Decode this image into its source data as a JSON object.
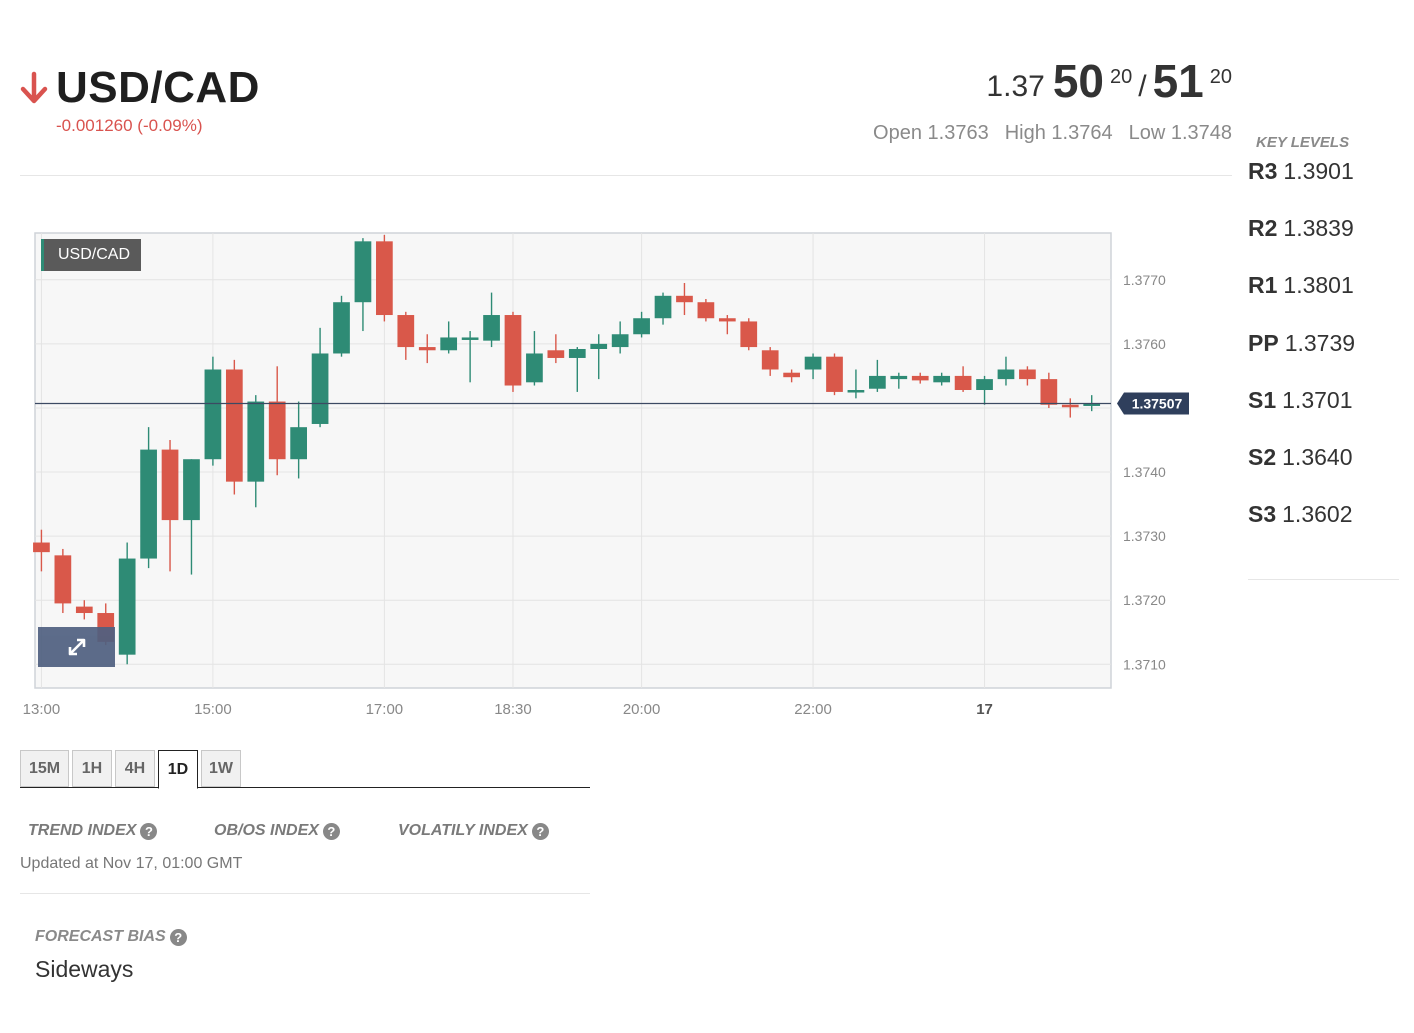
{
  "header": {
    "pair": "USD/CAD",
    "direction_icon": "arrow-down-icon",
    "change": "-0.001260 (-0.09%)",
    "price": {
      "prefix": "1.37",
      "bid_big": "50",
      "bid_pip": "20",
      "separator": "/",
      "ask_big": "51",
      "ask_pip": "20"
    },
    "open": "Open 1.3763",
    "high": "High 1.3764",
    "low": "Low 1.3748"
  },
  "key_levels": {
    "title": "KEY LEVELS",
    "items": [
      {
        "name": "R3",
        "value": "1.3901"
      },
      {
        "name": "R2",
        "value": "1.3839"
      },
      {
        "name": "R1",
        "value": "1.3801"
      },
      {
        "name": "PP",
        "value": "1.3739"
      },
      {
        "name": "S1",
        "value": "1.3701"
      },
      {
        "name": "S2",
        "value": "1.3640"
      },
      {
        "name": "S3",
        "value": "1.3602"
      }
    ]
  },
  "chart_data": {
    "type": "candlestick",
    "badge": "USD/CAD",
    "current_price_label": "1.37507",
    "current_price": 1.37507,
    "ylim": [
      1.37063,
      1.37773
    ],
    "yticks": [
      1.371,
      1.372,
      1.373,
      1.374,
      1.375,
      1.376,
      1.377
    ],
    "ytick_labels": [
      "1.3710",
      "1.3720",
      "1.3730",
      "1.3740",
      "",
      "1.3760",
      "1.3770"
    ],
    "xticks": [
      {
        "label": "13:00",
        "x": 0
      },
      {
        "label": "15:00",
        "x": 8
      },
      {
        "label": "17:00",
        "x": 16
      },
      {
        "label": "18:30",
        "x": 22
      },
      {
        "label": "20:00",
        "x": 28
      },
      {
        "label": "22:00",
        "x": 36
      },
      {
        "label": "17",
        "x": 44,
        "bold": true
      }
    ],
    "x_range": [
      0,
      50
    ],
    "colors": {
      "up": "#2e8b75",
      "down": "#d9584a",
      "grid": "#e4e4e4",
      "plot_bg": "#f7f7f7",
      "price_line": "#3c4a63",
      "price_tag": "#2f3f5c"
    },
    "candles": [
      {
        "x": 0,
        "o": 1.3729,
        "h": 1.3731,
        "l": 1.37245,
        "c": 1.37275
      },
      {
        "x": 1,
        "o": 1.3727,
        "h": 1.3728,
        "l": 1.3718,
        "c": 1.37195
      },
      {
        "x": 2,
        "o": 1.3719,
        "h": 1.372,
        "l": 1.3717,
        "c": 1.3718
      },
      {
        "x": 2,
        "o": 1.3718,
        "h": 1.37205,
        "l": 1.37065,
        "c": 1.37175,
        "shadow": true
      },
      {
        "x": 3,
        "o": 1.3718,
        "h": 1.37195,
        "l": 1.3713,
        "c": 1.37135
      },
      {
        "x": 4,
        "o": 1.37115,
        "h": 1.3729,
        "l": 1.371,
        "c": 1.37265
      },
      {
        "x": 5,
        "o": 1.37265,
        "h": 1.3747,
        "l": 1.3725,
        "c": 1.37435
      },
      {
        "x": 6,
        "o": 1.37435,
        "h": 1.3745,
        "l": 1.37245,
        "c": 1.37325
      },
      {
        "x": 7,
        "o": 1.37325,
        "h": 1.3742,
        "l": 1.3724,
        "c": 1.3742
      },
      {
        "x": 8,
        "o": 1.3742,
        "h": 1.3758,
        "l": 1.3741,
        "c": 1.3756
      },
      {
        "x": 9,
        "o": 1.3756,
        "h": 1.37575,
        "l": 1.37365,
        "c": 1.37385
      },
      {
        "x": 10,
        "o": 1.37385,
        "h": 1.3752,
        "l": 1.37345,
        "c": 1.3751
      },
      {
        "x": 11,
        "o": 1.3751,
        "h": 1.37565,
        "l": 1.37395,
        "c": 1.3742
      },
      {
        "x": 12,
        "o": 1.3742,
        "h": 1.3751,
        "l": 1.3739,
        "c": 1.3747
      },
      {
        "x": 13,
        "o": 1.37475,
        "h": 1.37625,
        "l": 1.3747,
        "c": 1.37585
      },
      {
        "x": 14,
        "o": 1.37585,
        "h": 1.37675,
        "l": 1.3758,
        "c": 1.37665
      },
      {
        "x": 15,
        "o": 1.37665,
        "h": 1.37765,
        "l": 1.3762,
        "c": 1.3776
      },
      {
        "x": 16,
        "o": 1.3776,
        "h": 1.3777,
        "l": 1.37635,
        "c": 1.37645
      },
      {
        "x": 17,
        "o": 1.37645,
        "h": 1.3765,
        "l": 1.37575,
        "c": 1.37595
      },
      {
        "x": 18,
        "o": 1.37595,
        "h": 1.37615,
        "l": 1.3757,
        "c": 1.3759
      },
      {
        "x": 19,
        "o": 1.3759,
        "h": 1.37635,
        "l": 1.37585,
        "c": 1.3761
      },
      {
        "x": 20,
        "o": 1.3761,
        "h": 1.3762,
        "l": 1.3754,
        "c": 1.3761,
        "cross": true
      },
      {
        "x": 21,
        "o": 1.37605,
        "h": 1.3768,
        "l": 1.37595,
        "c": 1.37645
      },
      {
        "x": 22,
        "o": 1.37645,
        "h": 1.3765,
        "l": 1.37525,
        "c": 1.37535
      },
      {
        "x": 23,
        "o": 1.3754,
        "h": 1.3762,
        "l": 1.37535,
        "c": 1.37585
      },
      {
        "x": 24,
        "o": 1.3759,
        "h": 1.37615,
        "l": 1.3757,
        "c": 1.37578
      },
      {
        "x": 25,
        "o": 1.37578,
        "h": 1.37595,
        "l": 1.37525,
        "c": 1.37592
      },
      {
        "x": 26,
        "o": 1.37592,
        "h": 1.37615,
        "l": 1.37545,
        "c": 1.376,
        "cross": true
      },
      {
        "x": 27,
        "o": 1.37595,
        "h": 1.37635,
        "l": 1.37585,
        "c": 1.37615
      },
      {
        "x": 28,
        "o": 1.37615,
        "h": 1.3765,
        "l": 1.3761,
        "c": 1.3764
      },
      {
        "x": 29,
        "o": 1.3764,
        "h": 1.3768,
        "l": 1.3763,
        "c": 1.37675
      },
      {
        "x": 30,
        "o": 1.37675,
        "h": 1.37695,
        "l": 1.37645,
        "c": 1.37665
      },
      {
        "x": 31,
        "o": 1.37665,
        "h": 1.3767,
        "l": 1.37635,
        "c": 1.3764
      },
      {
        "x": 32,
        "o": 1.3764,
        "h": 1.37645,
        "l": 1.37615,
        "c": 1.37635
      },
      {
        "x": 33,
        "o": 1.37635,
        "h": 1.3764,
        "l": 1.3759,
        "c": 1.37595
      },
      {
        "x": 34,
        "o": 1.3759,
        "h": 1.37595,
        "l": 1.3755,
        "c": 1.3756
      },
      {
        "x": 35,
        "o": 1.37555,
        "h": 1.3756,
        "l": 1.3754,
        "c": 1.37548
      },
      {
        "x": 36,
        "o": 1.3756,
        "h": 1.37585,
        "l": 1.37545,
        "c": 1.3758
      },
      {
        "x": 37,
        "o": 1.3758,
        "h": 1.37585,
        "l": 1.3752,
        "c": 1.37525
      },
      {
        "x": 38,
        "o": 1.37525,
        "h": 1.3756,
        "l": 1.37515,
        "c": 1.37528
      },
      {
        "x": 39,
        "o": 1.3753,
        "h": 1.37575,
        "l": 1.37525,
        "c": 1.3755
      },
      {
        "x": 40,
        "o": 1.37545,
        "h": 1.37555,
        "l": 1.3753,
        "c": 1.3755,
        "cross": true
      },
      {
        "x": 41,
        "o": 1.3755,
        "h": 1.37555,
        "l": 1.37538,
        "c": 1.37543
      },
      {
        "x": 42,
        "o": 1.3754,
        "h": 1.37555,
        "l": 1.37535,
        "c": 1.3755
      },
      {
        "x": 43,
        "o": 1.3755,
        "h": 1.37565,
        "l": 1.37525,
        "c": 1.37528
      },
      {
        "x": 44,
        "o": 1.37528,
        "h": 1.3755,
        "l": 1.37505,
        "c": 1.37545
      },
      {
        "x": 45,
        "o": 1.37545,
        "h": 1.3758,
        "l": 1.37535,
        "c": 1.3756
      },
      {
        "x": 46,
        "o": 1.3756,
        "h": 1.37565,
        "l": 1.37535,
        "c": 1.37545
      },
      {
        "x": 47,
        "o": 1.37545,
        "h": 1.37555,
        "l": 1.375,
        "c": 1.37505
      },
      {
        "x": 48,
        "o": 1.37505,
        "h": 1.37515,
        "l": 1.37485,
        "c": 1.37503,
        "cross": true
      },
      {
        "x": 49,
        "o": 1.37505,
        "h": 1.3752,
        "l": 1.37495,
        "c": 1.37507,
        "cross": true
      }
    ]
  },
  "chart_controls": {
    "expand_icon": "expand-arrows-icon",
    "timeframes": [
      "15M",
      "1H",
      "4H",
      "1D",
      "1W"
    ],
    "active_timeframe": "1D"
  },
  "indices": {
    "trend": "TREND INDEX",
    "obos": "OB/OS INDEX",
    "volatility": "VOLATILY INDEX",
    "help_icon": "question-circle-icon",
    "updated": "Updated at Nov 17, 01:00 GMT"
  },
  "forecast": {
    "label": "FORECAST BIAS",
    "value": "Sideways"
  }
}
